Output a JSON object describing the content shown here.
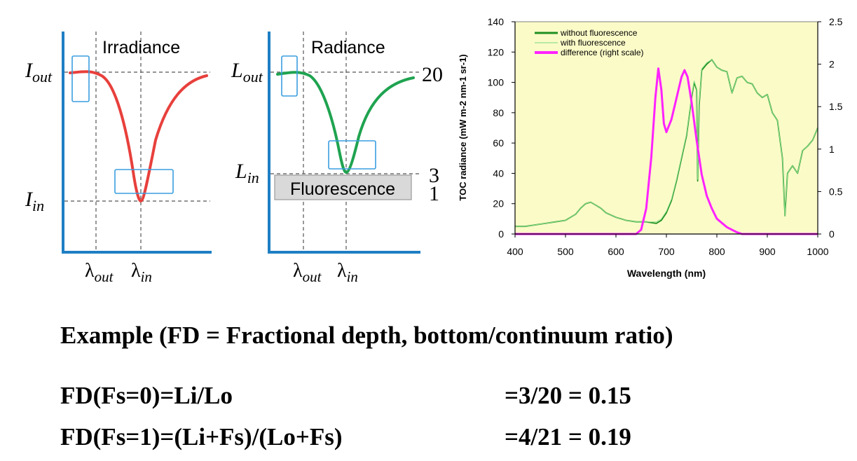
{
  "panels": {
    "irradiance": {
      "title": "Irradiance",
      "y_top_label": "I",
      "y_top_sub": "out",
      "y_bottom_label": "I",
      "y_bottom_sub": "in",
      "x_left_label": "λ",
      "x_left_sub": "out",
      "x_right_label": "λ",
      "x_right_sub": "in",
      "curve_color": "#e8403c"
    },
    "radiance": {
      "title": "Radiance",
      "y_top_label": "L",
      "y_top_sub": "out",
      "y_bottom_label": "L",
      "y_bottom_sub": "in",
      "x_left_label": "λ",
      "x_left_sub": "out",
      "x_right_label": "λ",
      "x_right_sub": "in",
      "fluorescence_label": "Fluorescence",
      "value_top": "20",
      "value_mid": "3",
      "value_bottom": "1",
      "curve_color": "#1fa350"
    },
    "axis_color": "#1f7fc4",
    "box_color": "#3a9ee0"
  },
  "chart_data": {
    "type": "line",
    "title": "",
    "xlabel": "Wavelength (nm)",
    "ylabel": "TOC radiance (mW m-2 nm-1 sr-1)",
    "y2label": "",
    "xlim": [
      400,
      1000
    ],
    "ylim": [
      0,
      140
    ],
    "y2lim": [
      0,
      2.5
    ],
    "xticks": [
      400,
      500,
      600,
      700,
      800,
      900,
      1000
    ],
    "yticks": [
      0,
      20,
      40,
      60,
      80,
      100,
      120,
      140
    ],
    "y2ticks": [
      0,
      0.5,
      1,
      1.5,
      2,
      2.5
    ],
    "y2tick_labels": [
      "0",
      "0.5",
      "1",
      "1.5",
      "2",
      "2.5"
    ],
    "background": "#fbfbc8",
    "legend_position": "top-left",
    "series": [
      {
        "name": "without fluorescence",
        "axis": "left",
        "color": "#1f8f1f",
        "x": [
          400,
          420,
          440,
          460,
          480,
          500,
          520,
          530,
          540,
          550,
          560,
          570,
          580,
          600,
          620,
          640,
          660,
          680,
          690,
          700,
          710,
          720,
          730,
          740,
          750,
          755,
          760,
          762,
          765,
          770,
          780,
          790,
          800,
          810,
          820,
          830,
          840,
          850,
          860,
          870,
          880,
          890,
          900,
          910,
          920,
          930,
          935,
          940,
          950,
          960,
          970,
          980,
          990,
          1000
        ],
        "y": [
          5,
          5,
          6,
          7,
          8,
          9,
          13,
          17,
          20,
          21,
          19,
          17,
          14,
          11,
          9,
          8,
          8,
          7,
          9,
          14,
          22,
          35,
          50,
          65,
          90,
          100,
          95,
          35,
          85,
          108,
          112,
          115,
          110,
          108,
          107,
          93,
          103,
          104,
          100,
          99,
          93,
          90,
          92,
          80,
          75,
          50,
          12,
          40,
          45,
          40,
          55,
          58,
          62,
          70
        ]
      },
      {
        "name": "with fluorescence",
        "axis": "left",
        "color": "#8ee08e",
        "x": [
          400,
          420,
          440,
          460,
          480,
          500,
          520,
          530,
          540,
          550,
          560,
          570,
          580,
          600,
          620,
          640,
          660,
          680,
          690,
          700,
          710,
          720,
          730,
          740,
          750,
          755,
          760,
          762,
          765,
          770,
          780,
          790,
          800,
          810,
          820,
          830,
          840,
          850,
          860,
          870,
          880,
          890,
          900,
          910,
          920,
          930,
          935,
          940,
          950,
          960,
          970,
          980,
          990,
          1000
        ],
        "y": [
          5,
          5,
          6,
          7,
          8,
          9,
          13,
          17,
          20,
          21,
          19,
          17,
          14,
          11,
          9,
          8,
          8,
          8,
          10,
          15,
          23,
          36,
          51,
          66,
          91,
          101,
          96,
          36,
          86,
          109,
          113,
          115,
          110,
          108,
          107,
          93,
          103,
          104,
          100,
          99,
          93,
          90,
          92,
          80,
          75,
          50,
          12,
          40,
          45,
          40,
          55,
          58,
          62,
          70
        ]
      },
      {
        "name": "difference (right scale)",
        "axis": "right",
        "color": "#ff22ff",
        "x": [
          400,
          600,
          640,
          650,
          660,
          670,
          678,
          684,
          690,
          695,
          700,
          710,
          720,
          730,
          736,
          742,
          750,
          760,
          770,
          780,
          790,
          800,
          820,
          840,
          850,
          900,
          1000
        ],
        "y": [
          0,
          0,
          0,
          0.05,
          0.3,
          0.9,
          1.6,
          1.95,
          1.7,
          1.3,
          1.2,
          1.35,
          1.6,
          1.85,
          1.93,
          1.85,
          1.55,
          1.1,
          0.7,
          0.45,
          0.3,
          0.18,
          0.08,
          0.02,
          0,
          0,
          0
        ]
      }
    ]
  },
  "example": {
    "heading": "Example (FD = Fractional depth, bottom/continuum ratio)",
    "rows": [
      {
        "formula": "FD(Fs=0)=Li/Lo",
        "result": "=3/20  = 0.15"
      },
      {
        "formula": "FD(Fs=1)=(Li+Fs)/(Lo+Fs)",
        "result": "=4/21  = 0.19"
      }
    ]
  }
}
